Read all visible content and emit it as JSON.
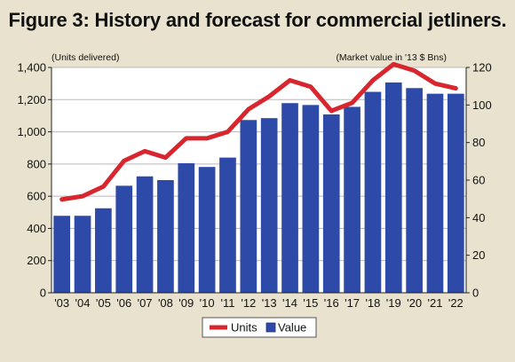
{
  "chart_data": {
    "type": "bar",
    "title": "Figure 3: History and forecast for commercial jetliners.",
    "categories": [
      "'03",
      "'04",
      "'05",
      "'06",
      "'07",
      "'08",
      "'09",
      "'10",
      "'11",
      "'12",
      "'13",
      "'14",
      "'15",
      "'16",
      "'17",
      "'18",
      "'19",
      "'20",
      "'21",
      "'22"
    ],
    "left_axis": {
      "label": "(Units delivered)",
      "range": [
        0,
        1400
      ],
      "ticks": [
        "0",
        "200",
        "400",
        "600",
        "800",
        "1,000",
        "1,200",
        "1,400"
      ],
      "tick_values": [
        0,
        200,
        400,
        600,
        800,
        1000,
        1200,
        1400
      ]
    },
    "right_axis": {
      "label": "(Market value in '13 $ Bns)",
      "range": [
        0,
        120
      ],
      "ticks": [
        "0",
        "20",
        "40",
        "60",
        "80",
        "100",
        "120"
      ],
      "tick_values": [
        0,
        20,
        40,
        60,
        80,
        100,
        120
      ]
    },
    "series": [
      {
        "name": "Units",
        "type": "line",
        "axis": "left",
        "color": "#d7262e",
        "values": [
          580,
          600,
          660,
          820,
          880,
          840,
          960,
          960,
          1000,
          1140,
          1220,
          1320,
          1280,
          1130,
          1180,
          1320,
          1420,
          1380,
          1300,
          1270
        ]
      },
      {
        "name": "Value",
        "type": "bar",
        "axis": "right",
        "color": "#2e4aa8",
        "values": [
          41,
          41,
          45,
          57,
          62,
          60,
          69,
          67,
          72,
          92,
          93,
          101,
          100,
          95,
          99,
          107,
          112,
          109,
          106,
          106
        ]
      }
    ],
    "legend": {
      "placement": "bottom-center",
      "items": [
        "Units",
        "Value"
      ]
    },
    "grid": {
      "horizontal": true,
      "vertical": false
    }
  }
}
